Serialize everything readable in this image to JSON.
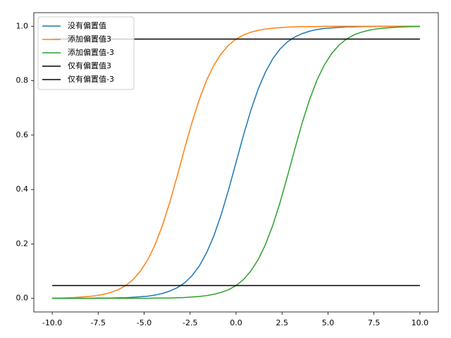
{
  "chart_data": {
    "type": "line",
    "x": [
      -10,
      -9.6,
      -9.2,
      -8.8,
      -8.4,
      -8,
      -7.6,
      -7.2,
      -6.8,
      -6.4,
      -6,
      -5.6,
      -5.2,
      -4.8,
      -4.4,
      -4,
      -3.6,
      -3.2,
      -2.8,
      -2.4,
      -2,
      -1.6,
      -1.2,
      -0.8,
      -0.4,
      0,
      0.4,
      0.8,
      1.2,
      1.6,
      2,
      2.4,
      2.8,
      3.2,
      3.6,
      4,
      4.4,
      4.8,
      5.2,
      5.6,
      6,
      6.4,
      6.8,
      7.2,
      7.6,
      8,
      8.4,
      8.8,
      9.2,
      9.6,
      10
    ],
    "series": [
      {
        "name": "没有偏置值",
        "color": "#1f77b4",
        "values": [
          0,
          0,
          0,
          0,
          0,
          0,
          0.001,
          0.001,
          0.001,
          0.002,
          0.002,
          0.004,
          0.006,
          0.008,
          0.012,
          0.018,
          0.027,
          0.039,
          0.057,
          0.083,
          0.119,
          0.168,
          0.231,
          0.31,
          0.401,
          0.5,
          0.599,
          0.69,
          0.769,
          0.832,
          0.881,
          0.917,
          0.943,
          0.961,
          0.973,
          0.982,
          0.988,
          0.992,
          0.994,
          0.996,
          0.998,
          0.998,
          0.999,
          0.999,
          1,
          1,
          1,
          1,
          1,
          1,
          1
        ]
      },
      {
        "name": "添加偏置值3",
        "color": "#ff7f0e",
        "values": [
          0.001,
          0.001,
          0.002,
          0.003,
          0.005,
          0.007,
          0.01,
          0.015,
          0.022,
          0.032,
          0.047,
          0.069,
          0.1,
          0.142,
          0.198,
          0.269,
          0.354,
          0.45,
          0.55,
          0.646,
          0.731,
          0.802,
          0.858,
          0.9,
          0.931,
          0.953,
          0.968,
          0.978,
          0.985,
          0.99,
          0.993,
          0.995,
          0.997,
          0.998,
          0.999,
          0.999,
          0.999,
          1,
          1,
          1,
          1,
          1,
          1,
          1,
          1,
          1,
          1,
          1,
          1,
          1,
          1
        ]
      },
      {
        "name": "添加偏置值-3",
        "color": "#2ca02c",
        "values": [
          0,
          0,
          0,
          0,
          0,
          0,
          0,
          0,
          0,
          0,
          0,
          0,
          0,
          0,
          0.001,
          0.001,
          0.001,
          0.002,
          0.003,
          0.005,
          0.007,
          0.01,
          0.015,
          0.022,
          0.032,
          0.047,
          0.069,
          0.1,
          0.142,
          0.198,
          0.269,
          0.354,
          0.45,
          0.55,
          0.646,
          0.731,
          0.802,
          0.858,
          0.9,
          0.931,
          0.953,
          0.968,
          0.978,
          0.985,
          0.99,
          0.993,
          0.995,
          0.997,
          0.998,
          0.999,
          0.999
        ]
      },
      {
        "name": "仅有偏置值3",
        "color": "#000000",
        "x": [
          -10,
          10
        ],
        "values": [
          0.953,
          0.953
        ]
      },
      {
        "name": "仅有偏置值-3",
        "color": "#000000",
        "x": [
          -10,
          10
        ],
        "values": [
          0.047,
          0.047
        ]
      }
    ],
    "xlim": [
      -11,
      11
    ],
    "ylim": [
      -0.05,
      1.05
    ],
    "xticks": [
      {
        "value": -10,
        "label": "-10.0"
      },
      {
        "value": -7.5,
        "label": "-7.5"
      },
      {
        "value": -5,
        "label": "-5.0"
      },
      {
        "value": -2.5,
        "label": "-2.5"
      },
      {
        "value": 0,
        "label": "0.0"
      },
      {
        "value": 2.5,
        "label": "2.5"
      },
      {
        "value": 5,
        "label": "5.0"
      },
      {
        "value": 7.5,
        "label": "7.5"
      },
      {
        "value": 10,
        "label": "10.0"
      }
    ],
    "yticks": [
      {
        "value": 0,
        "label": "0.0"
      },
      0.2,
      0.4,
      0.6,
      0.8,
      {
        "value": 1,
        "label": "1.0"
      }
    ],
    "legend": "upper left",
    "grid": false
  }
}
